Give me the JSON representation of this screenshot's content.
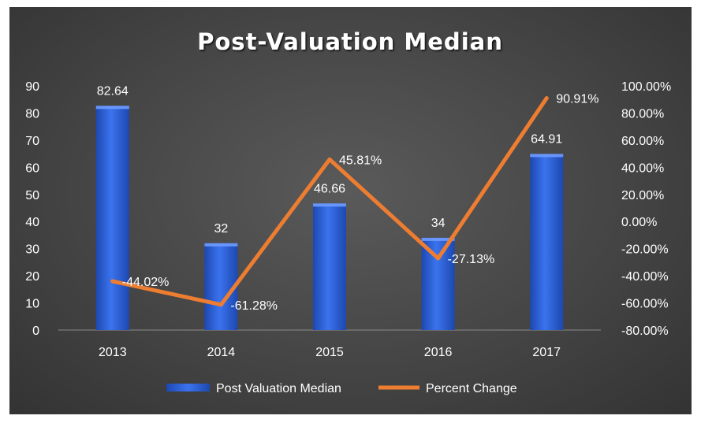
{
  "chart_data": {
    "type": "bar",
    "title": "Post-Valuation Median",
    "categories": [
      "2013",
      "2014",
      "2015",
      "2016",
      "2017"
    ],
    "series": [
      {
        "name": "Post Valuation Median",
        "type": "bar",
        "axis": "left",
        "values": [
          82.64,
          32,
          46.66,
          34,
          64.91
        ],
        "labels": [
          "82.64",
          "32",
          "46.66",
          "34",
          "64.91"
        ],
        "color": "#2E63D8"
      },
      {
        "name": "Percent Change",
        "type": "line",
        "axis": "right",
        "values": [
          -44.02,
          -61.28,
          45.81,
          -27.13,
          90.91
        ],
        "labels": [
          "-44.02%",
          "-61.28%",
          "45.81%",
          "-27.13%",
          "90.91%"
        ],
        "color": "#ED7D31"
      }
    ],
    "y_left": {
      "ylim": [
        0,
        90
      ],
      "ticks": [
        0,
        10,
        20,
        30,
        40,
        50,
        60,
        70,
        80,
        90
      ],
      "tick_labels": [
        "0",
        "10",
        "20",
        "30",
        "40",
        "50",
        "60",
        "70",
        "80",
        "90"
      ]
    },
    "y_right": {
      "ylim": [
        -80,
        100
      ],
      "ticks": [
        -80,
        -60,
        -40,
        -20,
        0,
        20,
        40,
        60,
        80,
        100
      ],
      "tick_labels": [
        "-80.00%",
        "-60.00%",
        "-40.00%",
        "-20.00%",
        "0.00%",
        "20.00%",
        "40.00%",
        "60.00%",
        "80.00%",
        "100.00%"
      ]
    },
    "grid": false,
    "legend": "bottom"
  }
}
